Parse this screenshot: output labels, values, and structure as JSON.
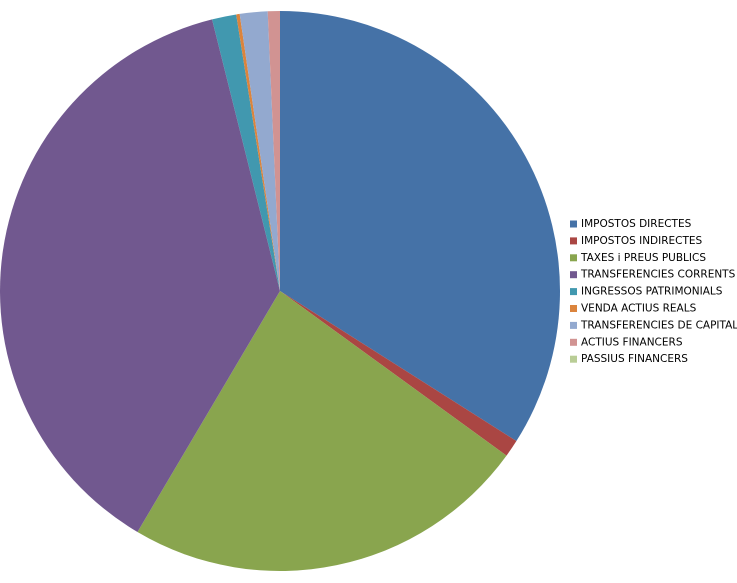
{
  "chart_data": {
    "type": "pie",
    "categories": [
      "IMPOSTOS DIRECTES",
      "IMPOSTOS INDIRECTES",
      "TAXES i PREUS PUBLICS",
      "TRANSFERENCIES CORRENTS",
      "INGRESSOS PATRIMONIALS",
      "VENDA ACTIUS REALS",
      "TRANSFERENCIES DE CAPITAL",
      "ACTIUS FINANCERS",
      "PASSIUS FINANCERS"
    ],
    "values": [
      34.0,
      1.0,
      23.5,
      37.6,
      1.4,
      0.2,
      1.6,
      0.7,
      0
    ],
    "colors": [
      "#4572A7",
      "#AA4643",
      "#89A54E",
      "#71588F",
      "#4198AF",
      "#DB843D",
      "#93A9CF",
      "#D19392",
      "#B9CD96"
    ],
    "legend": "right"
  }
}
